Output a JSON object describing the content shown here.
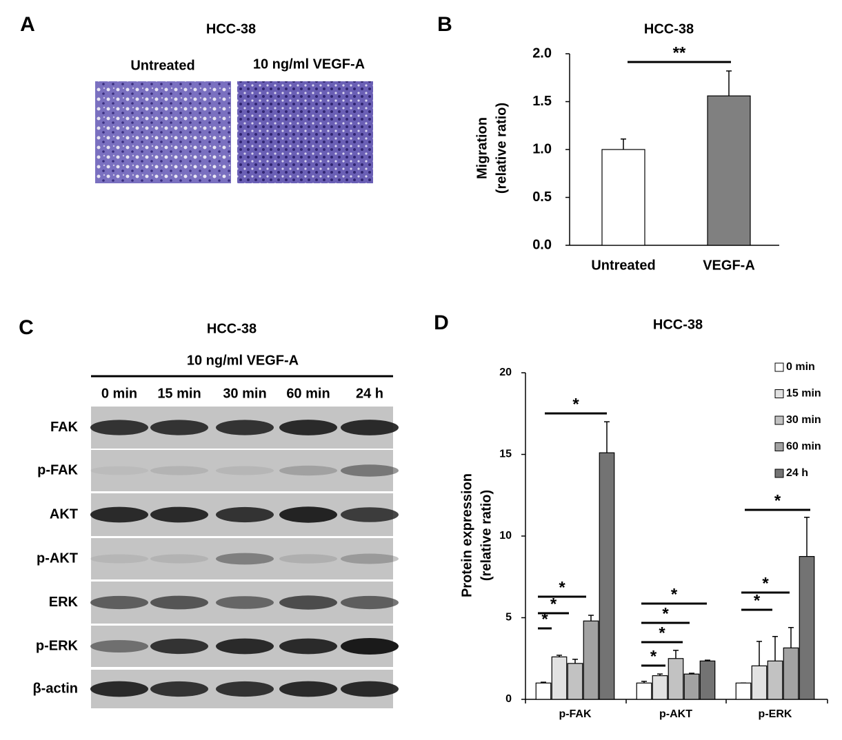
{
  "panel_a": {
    "letter": "A",
    "title": "HCC-38",
    "labels": [
      "Untreated",
      "10 ng/ml VEGF-A"
    ]
  },
  "panel_c": {
    "letter": "C",
    "title": "HCC-38",
    "treatment": "10 ng/ml VEGF-A",
    "timepoints": [
      "0 min",
      "15 min",
      "30 min",
      "60 min",
      "24 h"
    ],
    "rows": [
      "FAK",
      "p-FAK",
      "AKT",
      "p-AKT",
      "ERK",
      "p-ERK",
      "β-actin"
    ]
  },
  "chart_data": [
    {
      "letter": "B",
      "type": "bar",
      "title": "HCC-38",
      "y_label": [
        "Migration",
        "(relative ratio)"
      ],
      "categories": [
        "Untreated",
        "VEGF-A"
      ],
      "values": [
        1.0,
        1.56
      ],
      "errors": [
        0.11,
        0.26
      ],
      "colors": [
        "#ffffff",
        "#808080"
      ],
      "ylim": [
        0,
        2
      ],
      "yticks": [
        {
          "value": 0,
          "label": "0.0"
        },
        {
          "value": 0.5,
          "label": "0.5"
        },
        {
          "value": 1,
          "label": "1.0"
        },
        {
          "value": 1.5,
          "label": "1.5"
        },
        {
          "value": 2,
          "label": "2.0"
        }
      ],
      "significance": [
        "**"
      ]
    },
    {
      "letter": "D",
      "type": "grouped-bar",
      "title": "HCC-38",
      "y_label": [
        "Protein expression",
        "(relative ratio)"
      ],
      "categories": [
        "p-FAK",
        "p-AKT",
        "p-ERK"
      ],
      "series": [
        {
          "name": "0 min",
          "color": "#ffffff",
          "values": [
            1,
            1,
            1
          ],
          "errors": [
            0.05,
            0.1,
            0
          ]
        },
        {
          "name": "15 min",
          "color": "#e2e2e2",
          "values": [
            2.6,
            1.45,
            2.05
          ],
          "errors": [
            0.1,
            0.1,
            1.5
          ]
        },
        {
          "name": "30 min",
          "color": "#c2c2c2",
          "values": [
            2.2,
            2.5,
            2.35
          ],
          "errors": [
            0.25,
            0.5,
            1.5
          ]
        },
        {
          "name": "60 min",
          "color": "#a2a2a2",
          "values": [
            4.8,
            1.55,
            3.15
          ],
          "errors": [
            0.35,
            0.05,
            1.25
          ]
        },
        {
          "name": "24 h",
          "color": "#737373",
          "values": [
            15.1,
            2.35,
            8.75
          ],
          "errors": [
            1.9,
            0.05,
            2.4
          ]
        }
      ],
      "ylim": [
        0,
        20
      ],
      "yticks": [
        0,
        5,
        10,
        15,
        20
      ],
      "significance": [
        "*",
        "*",
        "*",
        "*",
        "*",
        "*",
        "*",
        "*",
        "*",
        "*",
        "*"
      ]
    }
  ]
}
